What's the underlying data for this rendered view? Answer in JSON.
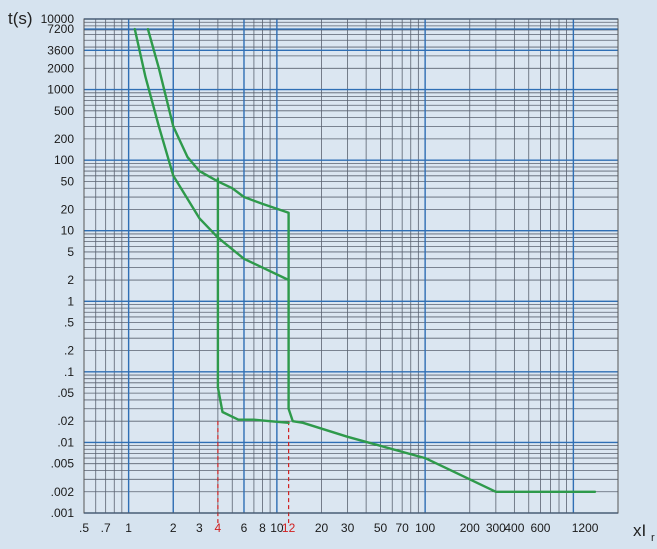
{
  "chart_data": {
    "type": "line",
    "title": "",
    "xlabel": "xI",
    "xlabel_sub": "r",
    "ylabel": "t(s)",
    "x_scale": "log",
    "y_scale": "log",
    "xlim": [
      0.5,
      2000
    ],
    "ylim": [
      0.001,
      10000
    ],
    "grid": true,
    "y_ticks": [
      {
        "value": 10000,
        "label": "10000"
      },
      {
        "value": 7200,
        "label": "7200"
      },
      {
        "value": 3600,
        "label": "3600"
      },
      {
        "value": 2000,
        "label": "2000"
      },
      {
        "value": 1000,
        "label": "1000"
      },
      {
        "value": 500,
        "label": "500"
      },
      {
        "value": 200,
        "label": "200"
      },
      {
        "value": 100,
        "label": "100"
      },
      {
        "value": 50,
        "label": "50"
      },
      {
        "value": 20,
        "label": "20"
      },
      {
        "value": 10,
        "label": "10"
      },
      {
        "value": 5,
        "label": "5"
      },
      {
        "value": 2,
        "label": "2"
      },
      {
        "value": 1,
        "label": "1"
      },
      {
        "value": 0.5,
        "label": ".5"
      },
      {
        "value": 0.2,
        "label": ".2"
      },
      {
        "value": 0.1,
        "label": ".1"
      },
      {
        "value": 0.05,
        "label": ".05"
      },
      {
        "value": 0.02,
        "label": ".02"
      },
      {
        "value": 0.01,
        "label": ".01"
      },
      {
        "value": 0.005,
        "label": ".005"
      },
      {
        "value": 0.002,
        "label": ".002"
      },
      {
        "value": 0.001,
        "label": ".001"
      }
    ],
    "x_ticks": [
      {
        "value": 0.5,
        "label": ".5",
        "color": "#1a1a1a"
      },
      {
        "value": 0.7,
        "label": ".7",
        "color": "#1a1a1a"
      },
      {
        "value": 1,
        "label": "1",
        "color": "#1a1a1a"
      },
      {
        "value": 2,
        "label": "2",
        "color": "#1a1a1a"
      },
      {
        "value": 3,
        "label": "3",
        "color": "#1a1a1a"
      },
      {
        "value": 4,
        "label": "4",
        "color": "#d11f1f"
      },
      {
        "value": 6,
        "label": "6",
        "color": "#1a1a1a"
      },
      {
        "value": 8,
        "label": "8",
        "color": "#1a1a1a"
      },
      {
        "value": 10,
        "label": "10",
        "color": "#1a1a1a"
      },
      {
        "value": 12,
        "label": "12",
        "color": "#d11f1f"
      },
      {
        "value": 20,
        "label": "20",
        "color": "#1a1a1a"
      },
      {
        "value": 30,
        "label": "30",
        "color": "#1a1a1a"
      },
      {
        "value": 50,
        "label": "50",
        "color": "#1a1a1a"
      },
      {
        "value": 70,
        "label": "70",
        "color": "#1a1a1a"
      },
      {
        "value": 100,
        "label": "100",
        "color": "#1a1a1a"
      },
      {
        "value": 200,
        "label": "200",
        "color": "#1a1a1a"
      },
      {
        "value": 300,
        "label": "300",
        "color": "#1a1a1a"
      },
      {
        "value": 400,
        "label": "400",
        "color": "#1a1a1a"
      },
      {
        "value": 600,
        "label": "600",
        "color": "#1a1a1a"
      },
      {
        "value": 1200,
        "label": "1200",
        "color": "#1a1a1a"
      }
    ],
    "x_major_lines": [
      1,
      2,
      6,
      10,
      100,
      1000
    ],
    "y_major_lines": [
      10000,
      7200,
      3600,
      1000,
      100,
      10,
      1,
      0.1,
      0.01,
      0.001
    ],
    "markers": [
      {
        "x": 4,
        "y_top": 0.02
      },
      {
        "x": 12,
        "y_top": 0.02
      }
    ],
    "series": [
      {
        "color": "#2e9a4b",
        "points": [
          [
            1.35,
            7200
          ],
          [
            1.6,
            2000
          ],
          [
            2.0,
            300
          ],
          [
            2.5,
            110
          ],
          [
            3.0,
            70
          ],
          [
            4.0,
            50
          ],
          [
            5.0,
            40
          ],
          [
            6.0,
            30
          ],
          [
            8.0,
            24
          ],
          [
            12,
            18
          ],
          [
            12,
            2.6
          ],
          [
            12,
            0.03
          ],
          [
            12.8,
            0.02
          ],
          [
            15,
            0.019
          ],
          [
            30,
            0.012
          ],
          [
            100,
            0.006
          ],
          [
            300,
            0.002
          ],
          [
            400,
            0.002
          ],
          [
            1400,
            0.002
          ]
        ]
      },
      {
        "color": "#2e9a4b",
        "points": [
          [
            1.1,
            7200
          ],
          [
            1.3,
            1500
          ],
          [
            1.6,
            300
          ],
          [
            2.0,
            60
          ],
          [
            3.0,
            15
          ],
          [
            4.0,
            8
          ],
          [
            6.0,
            4
          ],
          [
            8.0,
            3
          ],
          [
            12,
            2
          ]
        ]
      },
      {
        "color": "#2e9a4b",
        "points": [
          [
            4.0,
            55
          ],
          [
            4.0,
            1
          ],
          [
            4.0,
            0.06
          ],
          [
            4.3,
            0.027
          ],
          [
            5.5,
            0.021
          ],
          [
            7.0,
            0.021
          ],
          [
            9.0,
            0.02
          ],
          [
            12,
            0.019
          ]
        ]
      }
    ]
  }
}
